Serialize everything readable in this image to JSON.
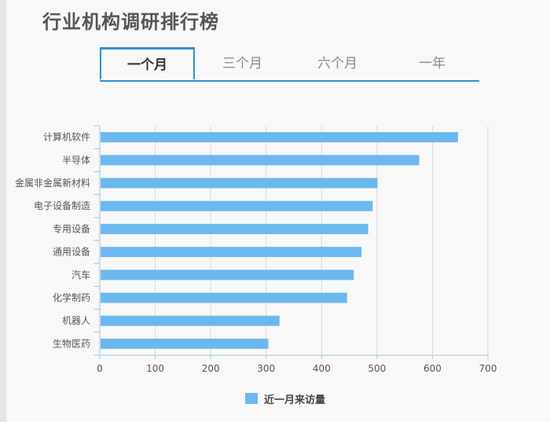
{
  "page_title": "行业机构调研排行榜",
  "tabs": [
    {
      "label": "一个月",
      "active": true
    },
    {
      "label": "三个月",
      "active": false
    },
    {
      "label": "六个月",
      "active": false
    },
    {
      "label": "一年",
      "active": false
    }
  ],
  "colors": {
    "bar": "#6cb8f0",
    "accent": "#2f8fd6",
    "grid": "#d8d8d8",
    "axis": "#9fc4e0",
    "text": "#555555"
  },
  "chart_data": {
    "type": "bar",
    "orientation": "horizontal",
    "categories": [
      "计算机软件",
      "半导体",
      "金属非金属新材料",
      "电子设备制造",
      "专用设备",
      "通用设备",
      "汽车",
      "化学制药",
      "机器人",
      "生物医药"
    ],
    "series": [
      {
        "name": "近一月来访量",
        "values": [
          646,
          576,
          501,
          492,
          484,
          472,
          458,
          446,
          324,
          304
        ]
      }
    ],
    "xlim": [
      0,
      700
    ],
    "xticks": [
      0,
      100,
      200,
      300,
      400,
      500,
      600,
      700
    ],
    "grid": true,
    "legend_position": "bottom"
  }
}
